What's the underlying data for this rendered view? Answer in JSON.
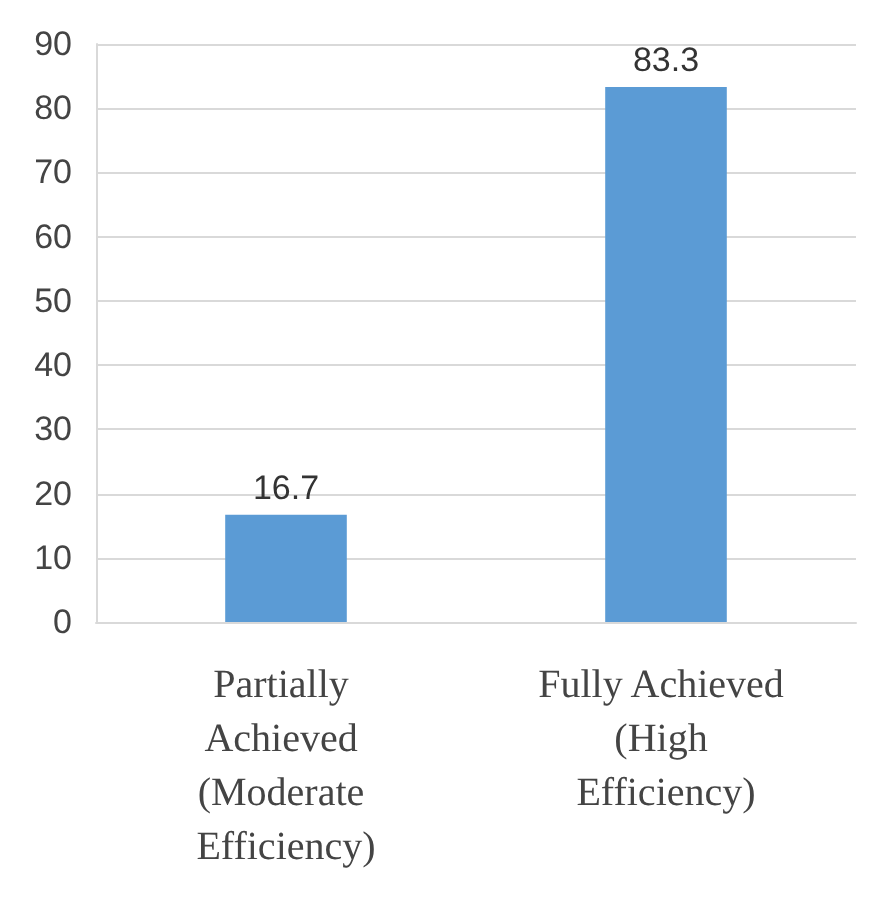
{
  "chart_data": {
    "type": "bar",
    "categories": [
      "Partially Achieved (Moderate Efficiency)",
      "Fully Achieved (High Efficiency)"
    ],
    "values": [
      16.7,
      83.3
    ],
    "color": "#5b9bd5",
    "ylim": [
      0,
      90
    ],
    "yticks": [
      0,
      10,
      20,
      30,
      40,
      50,
      60,
      70,
      80,
      90
    ],
    "grid": "y",
    "data_labels": true
  }
}
